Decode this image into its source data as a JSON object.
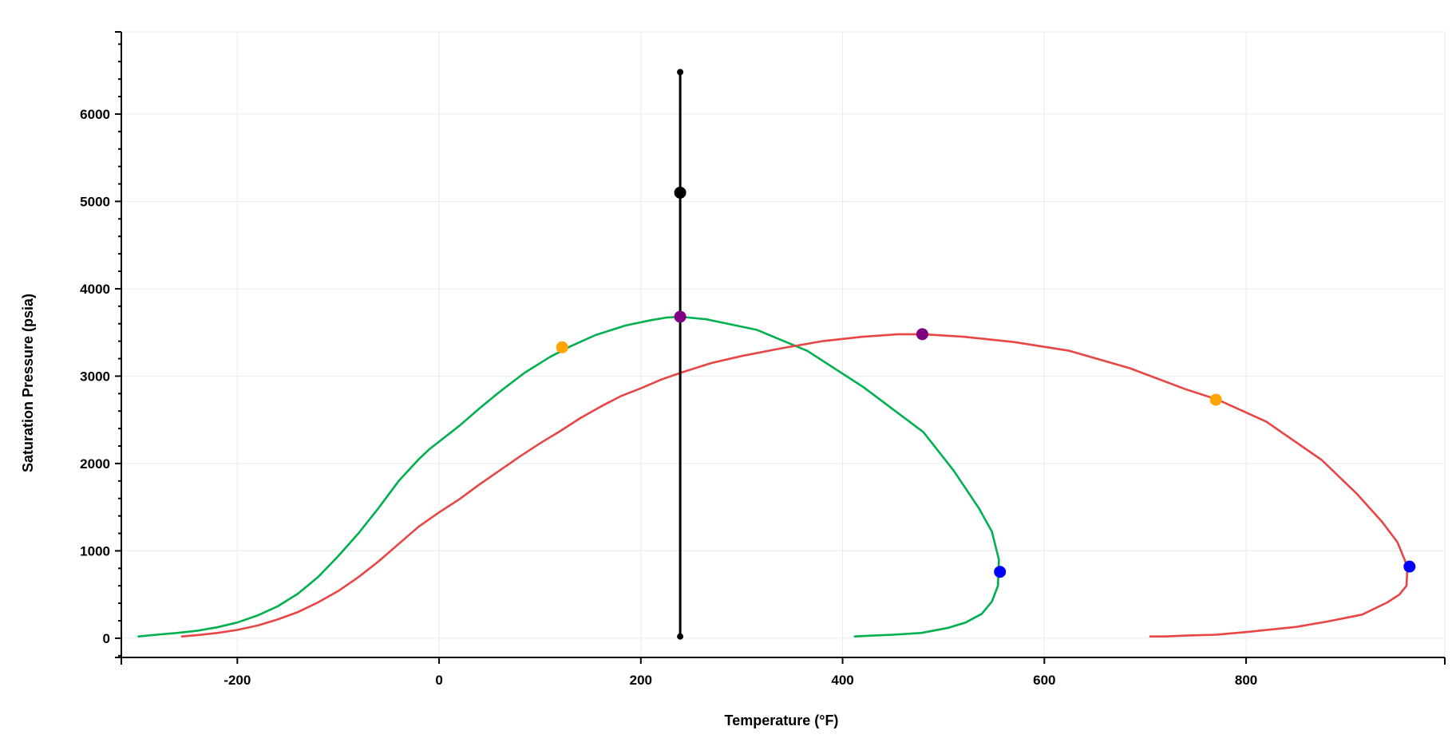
{
  "chart_data": {
    "type": "line",
    "xlabel": "Temperature (°F)",
    "ylabel": "Saturation Pressure (psia)",
    "xlim": [
      -315,
      997
    ],
    "ylim": [
      -220,
      6940
    ],
    "x_ticks": [
      -200,
      0,
      200,
      400,
      600,
      800
    ],
    "y_ticks": [
      0,
      1000,
      2000,
      3000,
      4000,
      5000,
      6000
    ],
    "grid": true,
    "legend": "none",
    "series": [
      {
        "color": "#00b04f",
        "x": [
          -298,
          -280,
          -260,
          -240,
          -220,
          -200,
          -180,
          -160,
          -140,
          -120,
          -100,
          -80,
          -60,
          -40,
          -20,
          -10,
          0,
          20,
          40,
          60,
          85,
          110,
          130,
          155,
          185,
          210,
          225,
          239,
          265,
          315,
          365,
          420,
          480,
          510,
          535,
          548,
          555,
          554,
          548,
          538,
          522,
          505,
          478,
          450,
          430,
          412
        ],
        "y": [
          20,
          40,
          60,
          85,
          125,
          180,
          260,
          365,
          510,
          700,
          940,
          1200,
          1490,
          1800,
          2050,
          2160,
          2250,
          2430,
          2630,
          2820,
          3040,
          3220,
          3340,
          3470,
          3580,
          3640,
          3670,
          3680,
          3650,
          3530,
          3290,
          2880,
          2360,
          1920,
          1490,
          1220,
          900,
          600,
          420,
          280,
          180,
          120,
          60,
          40,
          30,
          20
        ]
      },
      {
        "color": "#e84545",
        "x": [
          -255,
          -240,
          -220,
          -200,
          -180,
          -160,
          -140,
          -120,
          -100,
          -80,
          -60,
          -40,
          -20,
          0,
          20,
          40,
          60,
          80,
          100,
          120,
          140,
          160,
          180,
          200,
          220,
          240,
          270,
          300,
          340,
          380,
          420,
          455,
          480,
          520,
          570,
          625,
          685,
          740,
          772,
          820,
          875,
          910,
          935,
          950,
          960,
          959,
          952,
          940,
          915,
          880,
          850,
          800,
          770,
          740,
          720,
          705
        ],
        "y": [
          20,
          35,
          60,
          95,
          145,
          215,
          300,
          410,
          540,
          700,
          880,
          1080,
          1280,
          1440,
          1590,
          1760,
          1920,
          2080,
          2230,
          2370,
          2520,
          2650,
          2770,
          2860,
          2960,
          3040,
          3150,
          3230,
          3320,
          3400,
          3450,
          3480,
          3480,
          3450,
          3390,
          3290,
          3090,
          2850,
          2730,
          2480,
          2040,
          1650,
          1330,
          1100,
          820,
          600,
          500,
          410,
          270,
          190,
          130,
          70,
          40,
          30,
          20,
          20
        ]
      },
      {
        "color": "#000000",
        "x": [
          239,
          239
        ],
        "y": [
          20,
          6480
        ]
      }
    ],
    "markers": [
      {
        "x": 122,
        "y": 3330,
        "color": "#ffa500"
      },
      {
        "x": 239,
        "y": 3680,
        "color": "#800080"
      },
      {
        "x": 556,
        "y": 760,
        "color": "#0000ff"
      },
      {
        "x": 770,
        "y": 2730,
        "color": "#ffa500"
      },
      {
        "x": 479,
        "y": 3480,
        "color": "#800080"
      },
      {
        "x": 962,
        "y": 820,
        "color": "#0000ff"
      },
      {
        "x": 239,
        "y": 5100,
        "color": "#000000"
      },
      {
        "x": 239,
        "y": 6480,
        "color": "#000000",
        "small": true
      },
      {
        "x": 239,
        "y": 20,
        "color": "#000000",
        "small": true
      }
    ]
  }
}
